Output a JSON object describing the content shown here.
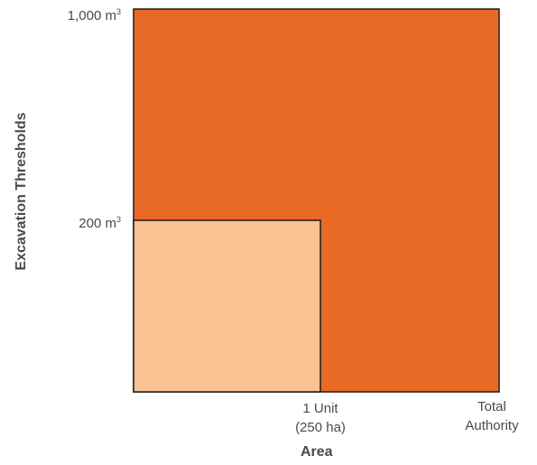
{
  "diagram": {
    "y_axis_title": "Excavation Thresholds",
    "x_axis_title": "Area",
    "y_ticks": [
      {
        "value": "1,000 m",
        "superscript": "3"
      },
      {
        "value": "200 m",
        "superscript": "3"
      }
    ],
    "x_ticks": [
      {
        "line1": "1 Unit",
        "line2": "(250 ha)"
      },
      {
        "line1": "Total",
        "line2": "Authority"
      }
    ],
    "regions": [
      {
        "name": "total-authority-region",
        "color": "#e86a24"
      },
      {
        "name": "unit-region",
        "color": "#f9c293"
      }
    ],
    "outline_color": "#1a1a1a"
  }
}
